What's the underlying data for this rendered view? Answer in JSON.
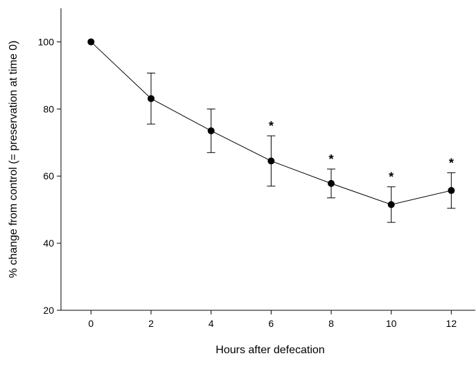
{
  "chart_data": {
    "type": "line",
    "x_label": "Hours after defecation",
    "y_label": "% change from control (= preservation at time 0)",
    "x": [
      0,
      2,
      4,
      6,
      8,
      10,
      12
    ],
    "series": [
      {
        "color": "#000000",
        "values": [
          100,
          83.1,
          73.5,
          64.5,
          57.8,
          51.5,
          55.7
        ],
        "errors": [
          0,
          7.6,
          6.5,
          7.5,
          4.3,
          5.3,
          5.3
        ]
      }
    ],
    "annotations": [
      {
        "x": 6,
        "text": "*"
      },
      {
        "x": 8,
        "text": "*"
      },
      {
        "x": 10,
        "text": "*"
      },
      {
        "x": 12,
        "text": "*"
      }
    ],
    "xlim": [
      -1,
      12.8
    ],
    "xticks": [
      0,
      2,
      4,
      6,
      8,
      10,
      12
    ],
    "ylim": [
      20,
      110
    ],
    "yticks": [
      20,
      40,
      60,
      80,
      100
    ]
  }
}
